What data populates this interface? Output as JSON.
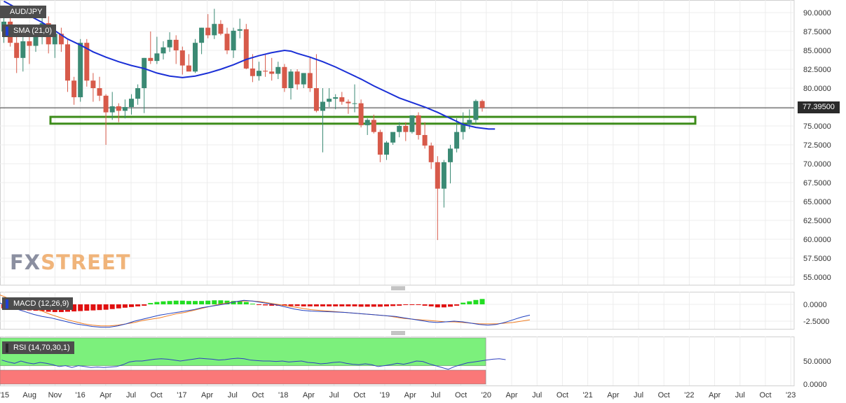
{
  "title": "AUD/JPY",
  "indicators": {
    "sma_label": "SMA (21,0)",
    "macd_label": "MACD (12,26,9)",
    "rsi_label": "RSI (14,70,30,1)"
  },
  "last_price": "77.39500",
  "logo": {
    "fx": "FX",
    "street": "STREET"
  },
  "colors": {
    "up": "#3b8a74",
    "down": "#d75a4a",
    "sma": "#1a2fd6",
    "zone": "#3d8c1a",
    "macd_pos": "#22dd22",
    "macd_neg": "#e01010",
    "macd_line": "#2040c0",
    "signal_line": "#f07d22",
    "rsi_line": "#3040c0",
    "rsi_upper": "#7cf07c",
    "rsi_lower": "#fa7878"
  },
  "chart_data": [
    {
      "type": "candlestick",
      "y_ticks": [
        "90.0000",
        "87.5000",
        "85.0000",
        "82.5000",
        "80.0000",
        "77.5000",
        "75.0000",
        "72.5000",
        "70.0000",
        "67.5000",
        "65.0000",
        "62.5000",
        "60.0000",
        "57.5000",
        "55.0000"
      ],
      "ylim": [
        53.5,
        91.5
      ],
      "x_ticks": [
        "'15",
        "Aug",
        "Nov",
        "'16",
        "Apr",
        "Jul",
        "Oct",
        "'17",
        "Apr",
        "Jul",
        "Oct",
        "'18",
        "Apr",
        "Jul",
        "Oct",
        "'19",
        "Apr",
        "Jul",
        "Oct",
        "'20",
        "Apr",
        "Jul",
        "Oct",
        "'21",
        "Apr",
        "Jul",
        "Oct",
        "'22",
        "Apr",
        "Jul",
        "Oct",
        "'23"
      ],
      "support_zone": [
        75.3,
        76.2
      ],
      "candles": [
        {
          "o": 87.5,
          "h": 90.8,
          "l": 86.0,
          "c": 88.8
        },
        {
          "o": 88.8,
          "h": 89.6,
          "l": 85.5,
          "c": 86.0
        },
        {
          "o": 86.0,
          "h": 87.2,
          "l": 82.0,
          "c": 84.0
        },
        {
          "o": 84.0,
          "h": 86.8,
          "l": 82.2,
          "c": 86.2
        },
        {
          "o": 86.2,
          "h": 87.5,
          "l": 83.2,
          "c": 85.6
        },
        {
          "o": 85.6,
          "h": 88.0,
          "l": 84.8,
          "c": 87.6
        },
        {
          "o": 87.6,
          "h": 89.4,
          "l": 85.8,
          "c": 88.6
        },
        {
          "o": 88.6,
          "h": 89.5,
          "l": 84.6,
          "c": 85.8
        },
        {
          "o": 85.8,
          "h": 88.0,
          "l": 84.0,
          "c": 87.2
        },
        {
          "o": 87.2,
          "h": 88.0,
          "l": 84.8,
          "c": 85.8
        },
        {
          "o": 85.8,
          "h": 86.4,
          "l": 79.5,
          "c": 81.0
        },
        {
          "o": 81.0,
          "h": 81.5,
          "l": 77.8,
          "c": 78.8
        },
        {
          "o": 78.8,
          "h": 86.5,
          "l": 78.2,
          "c": 86.0
        },
        {
          "o": 86.0,
          "h": 86.5,
          "l": 80.2,
          "c": 81.0
        },
        {
          "o": 81.0,
          "h": 82.0,
          "l": 78.2,
          "c": 80.0
        },
        {
          "o": 80.0,
          "h": 81.5,
          "l": 78.3,
          "c": 79.0
        },
        {
          "o": 79.0,
          "h": 79.2,
          "l": 72.5,
          "c": 76.8
        },
        {
          "o": 76.8,
          "h": 79.5,
          "l": 75.8,
          "c": 77.6
        },
        {
          "o": 77.6,
          "h": 78.0,
          "l": 75.5,
          "c": 77.0
        },
        {
          "o": 77.0,
          "h": 78.5,
          "l": 76.0,
          "c": 77.5
        },
        {
          "o": 77.5,
          "h": 79.2,
          "l": 76.5,
          "c": 78.6
        },
        {
          "o": 78.6,
          "h": 80.5,
          "l": 77.8,
          "c": 80.0
        },
        {
          "o": 80.0,
          "h": 84.0,
          "l": 76.7,
          "c": 84.0
        },
        {
          "o": 84.0,
          "h": 87.5,
          "l": 83.2,
          "c": 83.6
        },
        {
          "o": 83.6,
          "h": 86.8,
          "l": 83.2,
          "c": 84.6
        },
        {
          "o": 84.6,
          "h": 86.2,
          "l": 83.8,
          "c": 85.4
        },
        {
          "o": 85.4,
          "h": 87.4,
          "l": 84.8,
          "c": 86.4
        },
        {
          "o": 86.4,
          "h": 87.0,
          "l": 83.2,
          "c": 85.0
        },
        {
          "o": 85.0,
          "h": 85.5,
          "l": 81.8,
          "c": 83.0
        },
        {
          "o": 83.0,
          "h": 84.5,
          "l": 82.5,
          "c": 82.2
        },
        {
          "o": 82.2,
          "h": 86.5,
          "l": 82.0,
          "c": 86.0
        },
        {
          "o": 86.0,
          "h": 88.0,
          "l": 84.5,
          "c": 88.0
        },
        {
          "o": 88.0,
          "h": 89.8,
          "l": 86.6,
          "c": 87.0
        },
        {
          "o": 87.0,
          "h": 90.5,
          "l": 86.5,
          "c": 88.5
        },
        {
          "o": 88.5,
          "h": 89.0,
          "l": 87.0,
          "c": 87.2
        },
        {
          "o": 87.2,
          "h": 88.0,
          "l": 84.5,
          "c": 85.0
        },
        {
          "o": 85.0,
          "h": 88.0,
          "l": 84.0,
          "c": 87.6
        },
        {
          "o": 87.6,
          "h": 89.2,
          "l": 86.6,
          "c": 87.8
        },
        {
          "o": 87.8,
          "h": 88.5,
          "l": 82.5,
          "c": 82.6
        },
        {
          "o": 82.6,
          "h": 84.5,
          "l": 80.8,
          "c": 81.6
        },
        {
          "o": 81.6,
          "h": 83.5,
          "l": 81.0,
          "c": 82.3
        },
        {
          "o": 82.3,
          "h": 84.5,
          "l": 81.5,
          "c": 82.2
        },
        {
          "o": 82.2,
          "h": 84.0,
          "l": 81.0,
          "c": 81.9
        },
        {
          "o": 81.9,
          "h": 83.5,
          "l": 81.2,
          "c": 82.8
        },
        {
          "o": 82.8,
          "h": 83.2,
          "l": 79.5,
          "c": 80.0
        },
        {
          "o": 80.0,
          "h": 82.5,
          "l": 78.5,
          "c": 82.2
        },
        {
          "o": 82.2,
          "h": 82.5,
          "l": 79.8,
          "c": 80.5
        },
        {
          "o": 80.5,
          "h": 82.0,
          "l": 80.0,
          "c": 82.0
        },
        {
          "o": 82.0,
          "h": 84.2,
          "l": 79.5,
          "c": 80.0
        },
        {
          "o": 80.0,
          "h": 84.5,
          "l": 76.8,
          "c": 77.0
        },
        {
          "o": 77.0,
          "h": 80.0,
          "l": 71.5,
          "c": 78.2
        },
        {
          "o": 78.2,
          "h": 80.0,
          "l": 77.5,
          "c": 78.6
        },
        {
          "o": 78.6,
          "h": 79.2,
          "l": 77.2,
          "c": 78.8
        },
        {
          "o": 78.8,
          "h": 79.5,
          "l": 77.8,
          "c": 78.2
        },
        {
          "o": 78.2,
          "h": 78.5,
          "l": 76.6,
          "c": 78.0
        },
        {
          "o": 78.0,
          "h": 80.5,
          "l": 76.8,
          "c": 78.0
        },
        {
          "o": 78.0,
          "h": 78.5,
          "l": 74.8,
          "c": 75.1
        },
        {
          "o": 75.1,
          "h": 76.0,
          "l": 73.8,
          "c": 75.8
        },
        {
          "o": 75.8,
          "h": 76.5,
          "l": 74.0,
          "c": 74.2
        },
        {
          "o": 74.2,
          "h": 74.5,
          "l": 70.2,
          "c": 71.2
        },
        {
          "o": 71.2,
          "h": 73.0,
          "l": 70.5,
          "c": 72.8
        },
        {
          "o": 72.8,
          "h": 74.0,
          "l": 72.5,
          "c": 74.2
        },
        {
          "o": 74.2,
          "h": 75.5,
          "l": 73.5,
          "c": 75.0
        },
        {
          "o": 75.0,
          "h": 75.5,
          "l": 73.0,
          "c": 74.2
        },
        {
          "o": 74.2,
          "h": 76.2,
          "l": 74.0,
          "c": 76.4
        },
        {
          "o": 76.4,
          "h": 76.8,
          "l": 73.2,
          "c": 73.8
        },
        {
          "o": 73.8,
          "h": 75.5,
          "l": 72.0,
          "c": 72.4
        },
        {
          "o": 72.4,
          "h": 72.8,
          "l": 69.3,
          "c": 70.2
        },
        {
          "o": 70.2,
          "h": 71.0,
          "l": 59.9,
          "c": 66.7
        },
        {
          "o": 66.7,
          "h": 70.5,
          "l": 64.2,
          "c": 70.2
        },
        {
          "o": 70.2,
          "h": 72.5,
          "l": 67.4,
          "c": 72.0
        },
        {
          "o": 72.0,
          "h": 76.0,
          "l": 71.5,
          "c": 74.2
        },
        {
          "o": 74.2,
          "h": 76.8,
          "l": 73.2,
          "c": 75.2
        },
        {
          "o": 75.2,
          "h": 77.2,
          "l": 74.6,
          "c": 75.8
        },
        {
          "o": 75.8,
          "h": 78.5,
          "l": 75.3,
          "c": 78.3
        },
        {
          "o": 78.3,
          "h": 78.5,
          "l": 76.9,
          "c": 77.4
        }
      ],
      "sma": [
        [
          0,
          91.5
        ],
        [
          2,
          90.6
        ],
        [
          4,
          89.6
        ],
        [
          6,
          88.7
        ],
        [
          8,
          87.6
        ],
        [
          10,
          86.5
        ],
        [
          12,
          85.7
        ],
        [
          14,
          84.8
        ],
        [
          16,
          84.1
        ],
        [
          18,
          83.5
        ],
        [
          20,
          83.0
        ],
        [
          22,
          82.6
        ],
        [
          24,
          82.0
        ],
        [
          26,
          81.6
        ],
        [
          28,
          81.4
        ],
        [
          30,
          81.6
        ],
        [
          32,
          82.0
        ],
        [
          34,
          82.5
        ],
        [
          36,
          83.1
        ],
        [
          38,
          83.8
        ],
        [
          40,
          84.3
        ],
        [
          42,
          84.7
        ],
        [
          44,
          85.0
        ],
        [
          45,
          84.9
        ],
        [
          46,
          84.6
        ],
        [
          48,
          84.1
        ],
        [
          50,
          83.5
        ],
        [
          52,
          82.8
        ],
        [
          54,
          82.0
        ],
        [
          56,
          81.2
        ],
        [
          58,
          80.3
        ],
        [
          60,
          79.5
        ],
        [
          62,
          78.7
        ],
        [
          64,
          78.1
        ],
        [
          66,
          77.5
        ],
        [
          68,
          76.8
        ],
        [
          70,
          76.0
        ],
        [
          72,
          75.2
        ],
        [
          74,
          74.8
        ],
        [
          76,
          74.6
        ],
        [
          77,
          74.6
        ]
      ],
      "n_slots": 105
    },
    {
      "type": "bar",
      "y_ticks": [
        "0.0000",
        "-2.5000"
      ],
      "ylim": [
        -3.5,
        1.8
      ],
      "macd_hist": [
        -0.6,
        -0.7,
        -0.8,
        -0.85,
        -0.9,
        -0.95,
        -1.0,
        -1.1,
        -1.15,
        -1.15,
        -1.1,
        -1.05,
        -1.0,
        -0.95,
        -0.9,
        -0.85,
        -0.8,
        -0.7,
        -0.6,
        -0.5,
        -0.4,
        -0.3,
        -0.2,
        0.2,
        0.35,
        0.45,
        0.5,
        0.55,
        0.55,
        0.5,
        0.5,
        0.5,
        0.55,
        0.6,
        0.6,
        0.55,
        0.5,
        0.45,
        0.35,
        0.1,
        -0.1,
        -0.15,
        -0.2,
        -0.2,
        -0.2,
        -0.25,
        -0.25,
        -0.3,
        -0.3,
        -0.3,
        -0.3,
        -0.3,
        -0.3,
        -0.3,
        -0.3,
        -0.3,
        -0.35,
        -0.35,
        -0.35,
        -0.35,
        -0.3,
        -0.25,
        -0.2,
        -0.1,
        -0.1,
        -0.1,
        -0.2,
        -0.3,
        -0.45,
        -0.45,
        -0.35,
        -0.2,
        0.25,
        0.45,
        0.65,
        0.8
      ],
      "macd_line": [
        0.2,
        -0.3,
        -0.7,
        -1.1,
        -1.5,
        -1.8,
        -2.0,
        -2.3,
        -2.6,
        -2.9,
        -3.1,
        -3.3,
        -3.4,
        -3.4,
        -3.2,
        -2.9,
        -2.5,
        -2.2,
        -1.9,
        -1.6,
        -1.4,
        -1.2,
        -1.0,
        -0.8,
        -0.5,
        -0.3,
        -0.1,
        0.1,
        0.4,
        0.6,
        0.5,
        0.3,
        0.1,
        -0.1,
        -0.4,
        -0.7,
        -0.9,
        -1.0,
        -1.05,
        -1.1,
        -1.15,
        -1.2,
        -1.3,
        -1.4,
        -1.5,
        -1.6,
        -1.7,
        -1.8,
        -2.0,
        -2.2,
        -2.4,
        -2.6,
        -2.7,
        -2.6,
        -2.5,
        -2.6,
        -2.8,
        -3.0,
        -3.1,
        -3.0,
        -2.7,
        -2.3,
        -1.9,
        -1.6
      ],
      "signal_line": [
        1.4,
        0.9,
        0.4,
        -0.1,
        -0.6,
        -1.0,
        -1.5,
        -1.9,
        -2.3,
        -2.6,
        -2.9,
        -3.1,
        -3.2,
        -3.2,
        -3.1,
        -2.9,
        -2.7,
        -2.4,
        -2.2,
        -2.0,
        -1.7,
        -1.4,
        -1.2,
        -0.9,
        -0.6,
        -0.3,
        0.0,
        0.2,
        0.4,
        0.5,
        0.5,
        0.4,
        0.2,
        0.0,
        -0.2,
        -0.4,
        -0.6,
        -0.8,
        -0.9,
        -1.0,
        -1.1,
        -1.2,
        -1.3,
        -1.4,
        -1.5,
        -1.6,
        -1.7,
        -1.9,
        -2.1,
        -2.2,
        -2.3,
        -2.4,
        -2.5,
        -2.6,
        -2.6,
        -2.7,
        -2.8,
        -2.9,
        -2.9,
        -2.9,
        -2.8,
        -2.7,
        -2.5,
        -2.3
      ]
    },
    {
      "type": "line",
      "y_ticks": [
        "50.0000",
        "0.0000"
      ],
      "ylim": [
        0,
        75
      ],
      "upper": 70,
      "lower": 30,
      "rsi": [
        52,
        48,
        45,
        50,
        46,
        44,
        47,
        45,
        42,
        38,
        40,
        36,
        40,
        38,
        36,
        37,
        36,
        37,
        38,
        42,
        48,
        50,
        50,
        52,
        54,
        55,
        54,
        52,
        50,
        52,
        54,
        56,
        55,
        54,
        52,
        53,
        55,
        56,
        55,
        52,
        51,
        50,
        50,
        49,
        50,
        48,
        49,
        50,
        47,
        46,
        44,
        45,
        47,
        48,
        45,
        43,
        42,
        44,
        42,
        38,
        40,
        42,
        45,
        43,
        46,
        50,
        49,
        44,
        40,
        36,
        32,
        38,
        42,
        46,
        48,
        50,
        52,
        54,
        55,
        53
      ]
    }
  ]
}
